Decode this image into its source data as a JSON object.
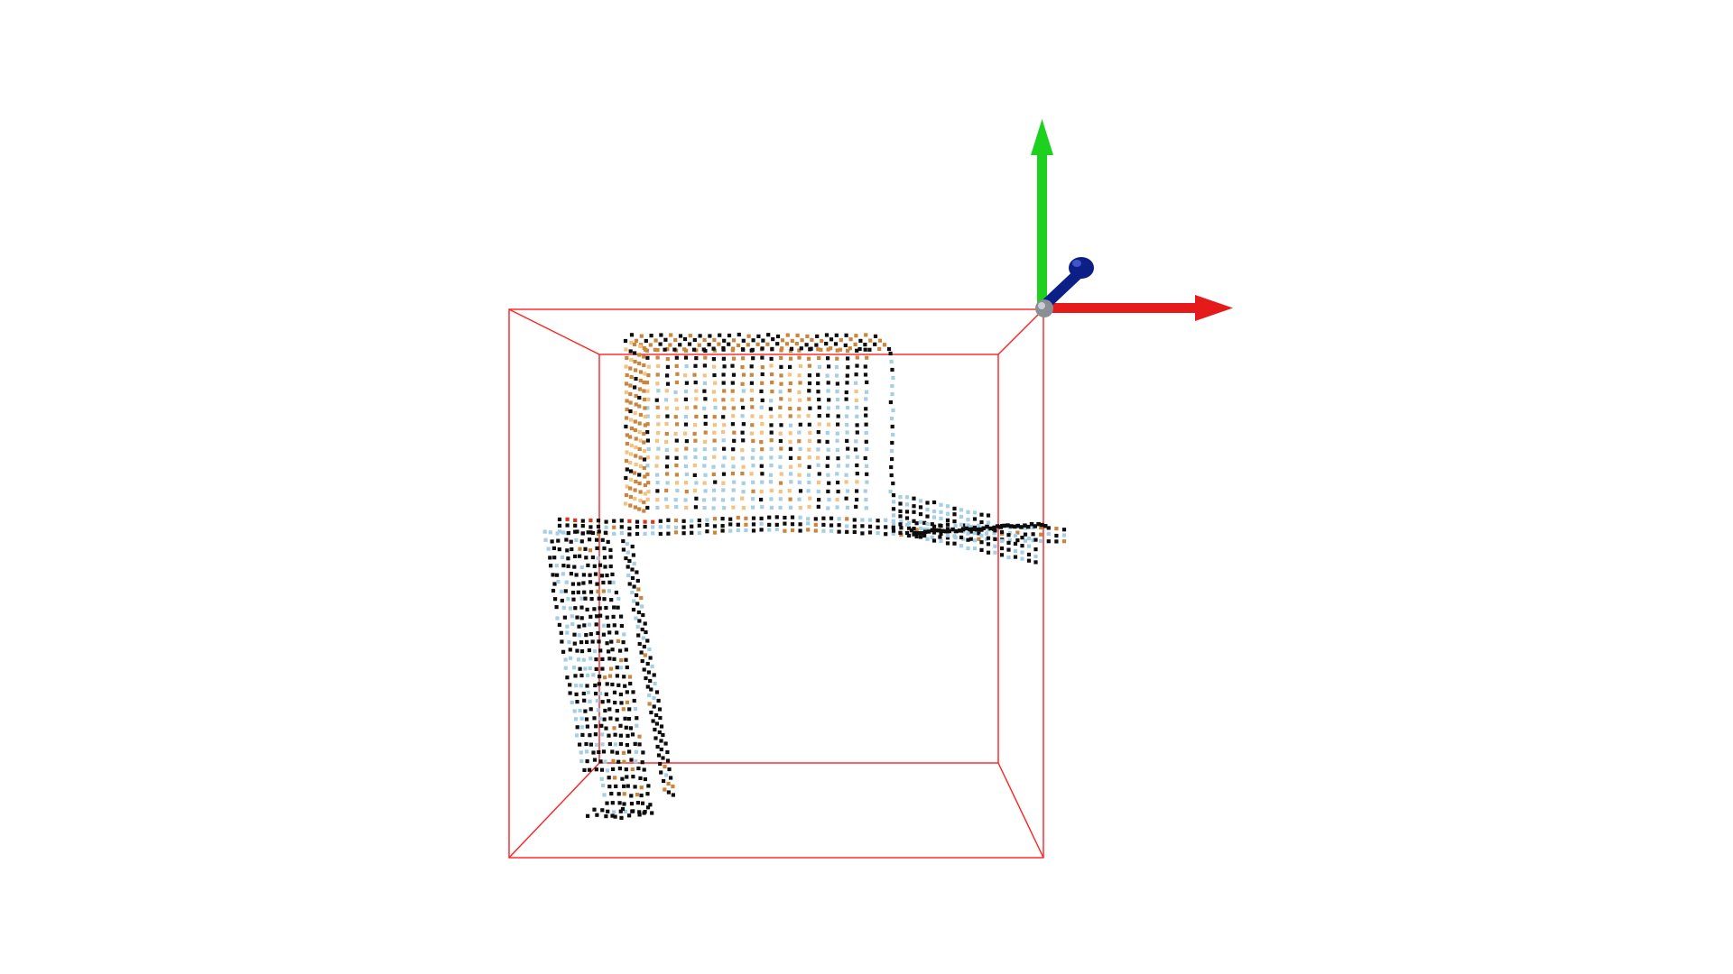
{
  "scene": {
    "background_color": "#ffffff",
    "bounding_box_color": "#ff2020",
    "axis_colors": {
      "x": "#e51b1b",
      "y": "#1fd11f",
      "z": "#0c1f86",
      "origin": "#8a8f96"
    },
    "point_colors": {
      "dark": "#0d0d0d",
      "light_blue": "#a6cfe4",
      "orange": "#c9863f",
      "light_orange": "#f3c384",
      "red": "#d23a1e"
    },
    "icons": {
      "axes": "xyz-axes-gizmo-icon",
      "box": "bounding-box-wireframe",
      "cloud": "point-cloud"
    }
  }
}
